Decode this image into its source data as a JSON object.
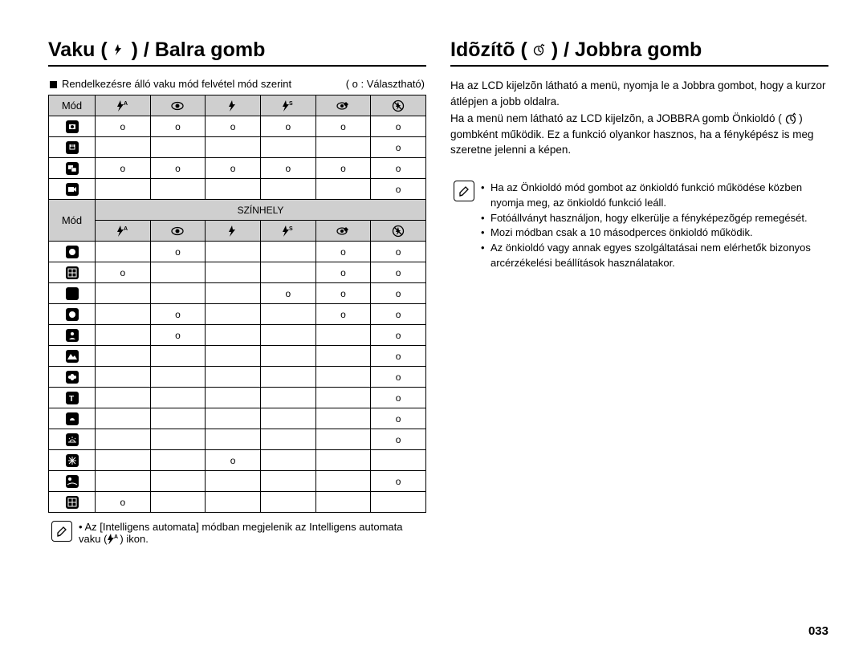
{
  "page_number": "033",
  "left": {
    "title_pre": "Vaku (",
    "title_post": ") / Balra gomb",
    "sub_left": "Rendelkezésre álló vaku mód felvétel mód szerint",
    "sub_right": "( o : Választható)",
    "mode_label": "Mód",
    "scene_label": "SZÍNHELY",
    "mark": "o",
    "table1_rows": [
      [
        "o",
        "o",
        "o",
        "o",
        "o",
        "o"
      ],
      [
        "",
        "",
        "",
        "",
        "",
        "o"
      ],
      [
        "o",
        "o",
        "o",
        "o",
        "o",
        "o"
      ],
      [
        "",
        "",
        "",
        "",
        "",
        "o"
      ]
    ],
    "table2_rows": [
      [
        "",
        "o",
        "",
        "",
        "o",
        "o"
      ],
      [
        "o",
        "",
        "",
        "",
        "o",
        "o"
      ],
      [
        "",
        "",
        "",
        "o",
        "o",
        "o"
      ],
      [
        "",
        "o",
        "",
        "",
        "o",
        "o"
      ],
      [
        "",
        "o",
        "",
        "",
        "",
        "o"
      ],
      [
        "",
        "",
        "",
        "",
        "",
        "o"
      ],
      [
        "",
        "",
        "",
        "",
        "",
        "o"
      ],
      [
        "",
        "",
        "",
        "",
        "",
        "o"
      ],
      [
        "",
        "",
        "",
        "",
        "",
        "o"
      ],
      [
        "",
        "",
        "",
        "",
        "",
        "o"
      ],
      [
        "",
        "",
        "o",
        "",
        "",
        ""
      ],
      [
        "",
        "",
        "",
        "",
        "",
        "o"
      ],
      [
        "o",
        "",
        "",
        "",
        "",
        ""
      ]
    ],
    "footnote": "Az [Intelligens automata] módban megjelenik az Intelligens automata vaku (",
    "footnote_tail": ") ikon."
  },
  "right": {
    "title_pre": "Idõzítõ (",
    "title_post": ") / Jobbra gomb",
    "para1": "Ha az LCD kijelzõn látható a menü, nyomja le a Jobbra gombot, hogy a kurzor átlépjen a jobb oldalra.",
    "para2a": "Ha a menü nem látható az LCD kijelzõn, a JOBBRA gomb Önkioldó (",
    "para2b": ") gombként működik. Ez a funkció olyankor hasznos, ha a fényképész is meg szeretne jelenni a képen.",
    "notes": [
      "Ha az Önkioldó mód gombot az önkioldó funkció működése közben nyomja meg, az önkioldó funkció leáll.",
      "Fotóállványt használjon, hogy elkerülje a fényképezõgép remegését.",
      "Mozi módban csak a 10 másodperces önkioldó működik.",
      "Az önkioldó vagy annak egyes szolgáltatásai nem elérhetők bizonyos arcérzékelési beállítások használatakor."
    ]
  },
  "colors": {
    "header_bg": "#cfcfcf",
    "border": "#000000",
    "text": "#000000",
    "background": "#ffffff"
  }
}
